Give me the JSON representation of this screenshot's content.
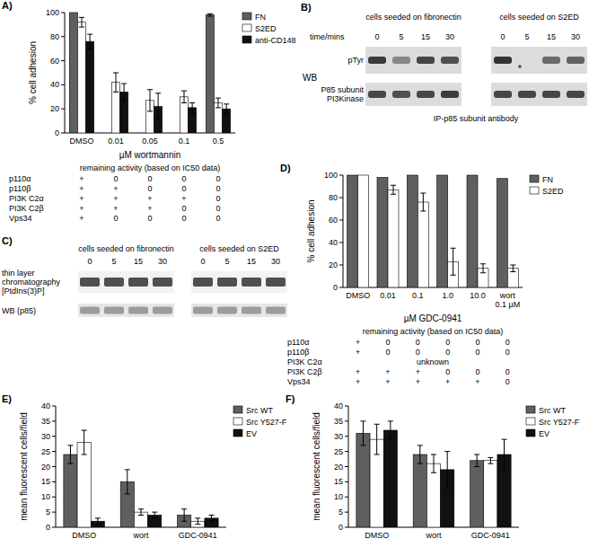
{
  "chart_data": [
    {
      "type": "bar",
      "panel_label": "A)",
      "categories": [
        "DMSO",
        "0.01",
        "0.05",
        "0.1",
        "0.5"
      ],
      "xlabel": "µM wortmannin",
      "ylabel": "% cell adhesion",
      "ylim": [
        0,
        100
      ],
      "yticks": [
        0,
        20,
        40,
        60,
        80,
        100
      ],
      "legend": "right",
      "series": [
        {
          "name": "FN",
          "color": "#5f5f5f",
          "values": [
            100,
            null,
            null,
            null,
            98
          ],
          "errors": [
            null,
            null,
            null,
            null,
            1
          ]
        },
        {
          "name": "S2ED",
          "color": "#ffffff",
          "values": [
            92,
            42,
            27,
            30,
            25
          ],
          "errors": [
            4,
            8,
            9,
            5,
            4
          ]
        },
        {
          "name": "anti-CD148",
          "color": "#111111",
          "values": [
            76,
            34,
            22,
            21,
            20
          ],
          "errors": [
            6,
            7,
            11,
            4,
            4
          ]
        }
      ]
    },
    {
      "type": "bar",
      "panel_label": "D)",
      "categories": [
        "DMSO",
        "0.01",
        "0.1",
        "1.0",
        "10.0",
        "wort 0.1 µM"
      ],
      "xlabel": "µM GDC-0941",
      "ylabel": "% cell adhesion",
      "ylim": [
        0,
        100
      ],
      "yticks": [
        0,
        20,
        40,
        60,
        80,
        100
      ],
      "legend": "right",
      "series": [
        {
          "name": "FN",
          "color": "#5f5f5f",
          "values": [
            100,
            98,
            100,
            100,
            100,
            97
          ],
          "errors": [
            null,
            null,
            null,
            null,
            null,
            null
          ]
        },
        {
          "name": "S2ED",
          "color": "#ffffff",
          "values": [
            100,
            87,
            76,
            23,
            17,
            17
          ],
          "errors": [
            null,
            4,
            8,
            12,
            4,
            3
          ]
        }
      ]
    },
    {
      "type": "bar",
      "panel_label": "E)",
      "categories": [
        "DMSO",
        "wort",
        "GDC-0941"
      ],
      "ylabel": "mean fluorescent cells/field",
      "ylim": [
        0,
        40
      ],
      "yticks": [
        0,
        5,
        10,
        15,
        20,
        25,
        30,
        35,
        40
      ],
      "legend": "right",
      "series": [
        {
          "name": "Src WT",
          "color": "#5f5f5f",
          "values": [
            24,
            15,
            4
          ],
          "errors": [
            3,
            4,
            2
          ]
        },
        {
          "name": "Src Y527-F",
          "color": "#ffffff",
          "values": [
            28,
            5,
            2
          ],
          "errors": [
            4,
            1,
            1
          ]
        },
        {
          "name": "EV",
          "color": "#111111",
          "values": [
            2,
            4,
            3
          ],
          "errors": [
            1,
            1,
            1
          ]
        }
      ]
    },
    {
      "type": "bar",
      "panel_label": "F)",
      "categories": [
        "DMSO",
        "wort",
        "GDC-0941"
      ],
      "ylabel": "mean fluorescent cells/field",
      "ylim": [
        0,
        40
      ],
      "yticks": [
        0,
        5,
        10,
        15,
        20,
        25,
        30,
        35,
        40
      ],
      "legend": "right",
      "series": [
        {
          "name": "Src WT",
          "color": "#5f5f5f",
          "values": [
            31,
            24,
            22
          ],
          "errors": [
            4,
            3,
            2
          ]
        },
        {
          "name": "Src Y527-F",
          "color": "#ffffff",
          "values": [
            29,
            21,
            22
          ],
          "errors": [
            5,
            3,
            1
          ]
        },
        {
          "name": "EV",
          "color": "#111111",
          "values": [
            32,
            19,
            24
          ],
          "errors": [
            3,
            6,
            5
          ]
        }
      ]
    }
  ],
  "inhibitor_tables": [
    {
      "title": "remaining activity (based on IC50 data)",
      "rows": [
        {
          "label": "p110α",
          "cells": [
            "+",
            "0",
            "0",
            "0",
            "0"
          ]
        },
        {
          "label": "p110β",
          "cells": [
            "+",
            "+",
            "0",
            "0",
            "0"
          ]
        },
        {
          "label": "PI3K C2α",
          "cells": [
            "+",
            "+",
            "+",
            "+",
            "0"
          ]
        },
        {
          "label": "PI3K C2β",
          "cells": [
            "+",
            "+",
            "+",
            "0",
            "0"
          ]
        },
        {
          "label": "Vps34",
          "cells": [
            "+",
            "0",
            "0",
            "0",
            "0"
          ]
        }
      ]
    },
    {
      "title": "remaining activity (based on IC50 data)",
      "rows": [
        {
          "label": "p110α",
          "cells": [
            "+",
            "0",
            "0",
            "0",
            "0",
            "0"
          ]
        },
        {
          "label": "p110β",
          "cells": [
            "+",
            "0",
            "0",
            "0",
            "0",
            "0"
          ]
        },
        {
          "label": "PI3K C2α",
          "cells": [
            "unknown"
          ]
        },
        {
          "label": "PI3K C2β",
          "cells": [
            "+",
            "+",
            "+",
            "0",
            "0",
            "0"
          ]
        },
        {
          "label": "Vps34",
          "cells": [
            "+",
            "+",
            "+",
            "+",
            "+",
            "0"
          ]
        }
      ]
    }
  ],
  "panel_B": {
    "panel_label": "B)",
    "groups": [
      "cells seeded on fibronectin",
      "cells seeded on S2ED"
    ],
    "time_label": "time/mins",
    "times": [
      0,
      5,
      15,
      30
    ],
    "rows": [
      [
        "pTyr"
      ],
      [
        "P85 subunit",
        "PI3Kinase"
      ]
    ],
    "side_label": "WB",
    "footer": "IP-p85 subunit antibody",
    "asterisk": "*"
  },
  "panel_C": {
    "panel_label": "C)",
    "groups": [
      "cells seeded on fibronectin",
      "cells seeded on S2ED"
    ],
    "times": [
      0,
      5,
      15,
      30
    ],
    "rows": [
      [
        "thin layer",
        "chromatography",
        "[PtdIns(3)P]"
      ],
      [
        "WB (p85)"
      ]
    ]
  }
}
